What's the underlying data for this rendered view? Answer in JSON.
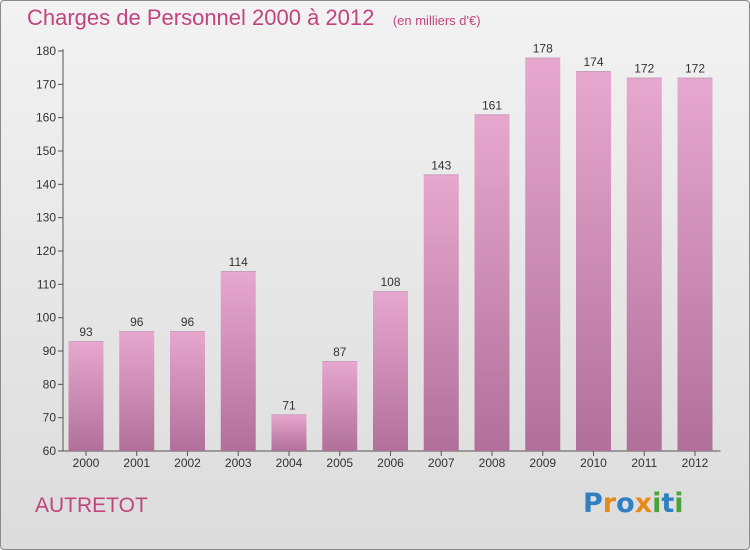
{
  "title": "Charges de Personnel 2000 à 2012",
  "subtitle": "(en milliers d'€)",
  "commune": "AUTRETOT",
  "brand": {
    "letters": [
      "P",
      "r",
      "o",
      "x",
      "i",
      "t",
      "i"
    ],
    "colors": [
      "#2f7fc1",
      "#e8891c",
      "#2f7fc1",
      "#e8891c",
      "#4aa339",
      "#2f7fc1",
      "#4aa339"
    ]
  },
  "colors": {
    "bar_top": "#e7a8cf",
    "bar_bottom": "#b0709a",
    "accent": "#c0457e"
  },
  "chart_data": {
    "type": "bar",
    "title": "Charges de Personnel 2000 à 2012",
    "subtitle": "(en milliers d'€)",
    "xlabel": "",
    "ylabel": "",
    "categories": [
      "2000",
      "2001",
      "2002",
      "2003",
      "2004",
      "2005",
      "2006",
      "2007",
      "2008",
      "2009",
      "2010",
      "2011",
      "2012"
    ],
    "values": [
      93,
      96,
      96,
      114,
      71,
      87,
      108,
      143,
      161,
      178,
      174,
      172,
      172
    ],
    "ylim": [
      60,
      180
    ],
    "yticks": [
      60,
      70,
      80,
      90,
      100,
      110,
      120,
      130,
      140,
      150,
      160,
      170,
      180
    ],
    "grid": false
  }
}
